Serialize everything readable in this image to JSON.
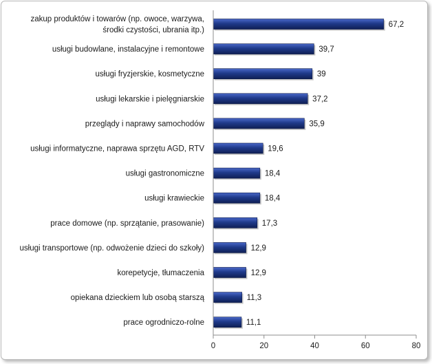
{
  "chart_data": {
    "type": "bar",
    "orientation": "horizontal",
    "title": "",
    "xlabel": "",
    "ylabel": "",
    "xlim": [
      0,
      80
    ],
    "xticks": [
      0,
      20,
      40,
      60,
      80
    ],
    "grid": false,
    "legend": "none",
    "bar_color": "#1f3a8a",
    "categories": [
      [
        "zakup produktów i towarów (np. owoce, warzywa,",
        "środki czystości, ubrania itp.)"
      ],
      [
        "usługi budowlane, instalacyjne i remontowe"
      ],
      [
        "usługi fryzjerskie, kosmetyczne"
      ],
      [
        "usługi lekarskie i pielęgniarskie"
      ],
      [
        "przeglądy i naprawy samochodów"
      ],
      [
        "usługi informatyczne, naprawa sprzętu AGD, RTV"
      ],
      [
        "usługi gastronomiczne"
      ],
      [
        "usługi krawieckie"
      ],
      [
        "prace domowe (np. sprzątanie, prasowanie)"
      ],
      [
        "usługi transportowe (np. odwożenie dzieci do szkoły)"
      ],
      [
        "korepetycje, tłumaczenia"
      ],
      [
        "opiekana dzieckiem lub osobą starszą"
      ],
      [
        "prace ogrodniczo-rolne"
      ]
    ],
    "values": [
      67.2,
      39.7,
      39,
      37.2,
      35.9,
      19.6,
      18.4,
      18.4,
      17.3,
      12.9,
      12.9,
      11.3,
      11.1
    ],
    "value_labels": [
      "67,2",
      "39,7",
      "39",
      "37,2",
      "35,9",
      "19,6",
      "18,4",
      "18,4",
      "17,3",
      "12,9",
      "12,9",
      "11,3",
      "11,1"
    ]
  }
}
